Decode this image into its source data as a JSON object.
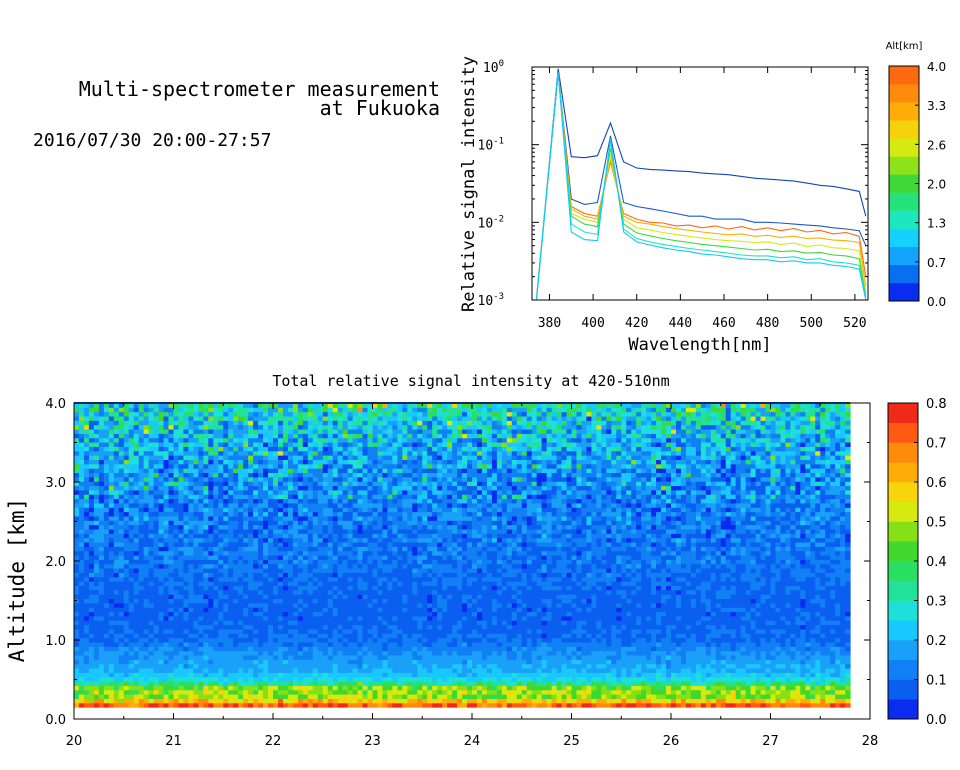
{
  "header": {
    "title_line1": "Multi-spectrometer measurement",
    "title_line2": "at Fukuoka",
    "datetime": "2016/07/30 20:00-27:57"
  },
  "chart_data": [
    {
      "type": "line",
      "xlabel": "Wavelength[nm]",
      "ylabel": "Relative signal intensity",
      "xlim": [
        372,
        526
      ],
      "ylim": [
        0.001,
        1
      ],
      "yscale": "log",
      "x_ticks": [
        380,
        400,
        420,
        440,
        460,
        480,
        500,
        520
      ],
      "y_ticks": [
        {
          "value": 0.001,
          "base": "10",
          "exp": "-3"
        },
        {
          "value": 0.01,
          "base": "10",
          "exp": "-2"
        },
        {
          "value": 0.1,
          "base": "10",
          "exp": "-1"
        },
        {
          "value": 1,
          "base": "10",
          "exp": "0"
        }
      ],
      "x": [
        374,
        384,
        390,
        396,
        402,
        408,
        414,
        420,
        426,
        432,
        438,
        444,
        450,
        456,
        462,
        468,
        474,
        480,
        486,
        492,
        498,
        504,
        510,
        516,
        522,
        525
      ],
      "legend": {
        "title": "Alt[km]",
        "labels": [
          "4.0",
          "3.3",
          "2.6",
          "2.0",
          "1.3",
          "0.7",
          "0.0"
        ],
        "colors": [
          "#0a2cf0",
          "#0a6ef0",
          "#12a4ff",
          "#14d2ff",
          "#1ee6be",
          "#26e27a",
          "#3ed83a",
          "#8ee21c",
          "#d4ea10",
          "#f6d20c",
          "#ffae08",
          "#ff8a0c",
          "#ff6a10"
        ]
      },
      "series": [
        {
          "color": "#1545b5",
          "values": [
            0.001,
            0.95,
            0.07,
            0.068,
            0.072,
            0.19,
            0.06,
            0.05,
            0.048,
            0.047,
            0.046,
            0.045,
            0.043,
            0.042,
            0.041,
            0.039,
            0.037,
            0.036,
            0.035,
            0.034,
            0.032,
            0.03,
            0.029,
            0.027,
            0.025,
            0.012
          ]
        },
        {
          "color": "#1a5ac8",
          "values": [
            0.001,
            0.85,
            0.02,
            0.017,
            0.018,
            0.13,
            0.018,
            0.016,
            0.015,
            0.014,
            0.013,
            0.012,
            0.012,
            0.011,
            0.011,
            0.011,
            0.01,
            0.01,
            0.0098,
            0.0095,
            0.0092,
            0.009,
            0.0085,
            0.0082,
            0.0078,
            0.005
          ]
        },
        {
          "color": "#ff6a10",
          "values": [
            0.001,
            0.85,
            0.016,
            0.013,
            0.012,
            0.06,
            0.013,
            0.011,
            0.01,
            0.0098,
            0.009,
            0.0092,
            0.0085,
            0.009,
            0.0082,
            0.0088,
            0.008,
            0.0085,
            0.0078,
            0.0083,
            0.0075,
            0.0079,
            0.0071,
            0.0074,
            0.0066,
            0.002
          ]
        },
        {
          "color": "#ffae08",
          "values": [
            0.001,
            0.85,
            0.015,
            0.012,
            0.011,
            0.065,
            0.012,
            0.01,
            0.0095,
            0.0088,
            0.0083,
            0.0079,
            0.0075,
            0.0072,
            0.0069,
            0.0071,
            0.0066,
            0.0068,
            0.0064,
            0.0066,
            0.0062,
            0.0063,
            0.0059,
            0.0058,
            0.0055,
            0.0015
          ]
        },
        {
          "color": "#d4ea10",
          "values": [
            0.001,
            0.85,
            0.013,
            0.011,
            0.01,
            0.075,
            0.011,
            0.0085,
            0.008,
            0.0074,
            0.007,
            0.0066,
            0.0063,
            0.006,
            0.0058,
            0.0057,
            0.0055,
            0.0056,
            0.0052,
            0.0054,
            0.0049,
            0.0051,
            0.0047,
            0.0046,
            0.0043,
            0.0012
          ]
        },
        {
          "color": "#3ed83a",
          "values": [
            0.001,
            0.85,
            0.012,
            0.0095,
            0.0088,
            0.09,
            0.0095,
            0.0073,
            0.0067,
            0.0062,
            0.0058,
            0.0055,
            0.0052,
            0.005,
            0.0048,
            0.0046,
            0.0044,
            0.0045,
            0.0042,
            0.0043,
            0.004,
            0.0041,
            0.0038,
            0.0037,
            0.0034,
            0.0011
          ]
        },
        {
          "color": "#1ee6be",
          "values": [
            0.001,
            0.85,
            0.0095,
            0.0075,
            0.007,
            0.11,
            0.0082,
            0.0062,
            0.0056,
            0.0052,
            0.0049,
            0.0046,
            0.0044,
            0.0042,
            0.004,
            0.0038,
            0.0037,
            0.0037,
            0.0035,
            0.0036,
            0.0033,
            0.0034,
            0.0031,
            0.003,
            0.0028,
            0.001
          ]
        },
        {
          "color": "#12c8ff",
          "values": [
            0.001,
            0.85,
            0.0075,
            0.006,
            0.0058,
            0.12,
            0.0075,
            0.0056,
            0.0051,
            0.0047,
            0.0044,
            0.0042,
            0.0039,
            0.0038,
            0.0036,
            0.0034,
            0.0033,
            0.0033,
            0.0031,
            0.0032,
            0.003,
            0.003,
            0.0028,
            0.0027,
            0.0025,
            0.001
          ]
        }
      ]
    },
    {
      "type": "heatmap",
      "title": "Total relative signal intensity at 420-510nm",
      "ylabel": "Altitude [km]",
      "xlim": [
        20,
        28
      ],
      "ylim": [
        0,
        4
      ],
      "x_ticks": [
        "20",
        "21",
        "22",
        "23",
        "24",
        "25",
        "26",
        "27",
        "28"
      ],
      "y_ticks": [
        "0.0",
        "1.0",
        "2.0",
        "3.0",
        "4.0"
      ],
      "data_extent_x": [
        20,
        27.8
      ],
      "data_extent_y": [
        0.15,
        4.0
      ],
      "colorbar": {
        "labels": [
          "0.0",
          "0.1",
          "0.2",
          "0.3",
          "0.4",
          "0.5",
          "0.6",
          "0.7",
          "0.8"
        ],
        "range": [
          0,
          0.8
        ],
        "colors": [
          "#0a2cf0",
          "#0a5ef0",
          "#1080f4",
          "#1aa0f8",
          "#18c8ff",
          "#1ee0d8",
          "#22e29a",
          "#2ade62",
          "#40d82c",
          "#86e016",
          "#d6ea10",
          "#f8d40a",
          "#ffac08",
          "#ff8a0c",
          "#ff5a12",
          "#f02a18"
        ]
      },
      "altitude_profile": [
        {
          "alt": 0.15,
          "value": 0.78
        },
        {
          "alt": 0.22,
          "value": 0.62
        },
        {
          "alt": 0.3,
          "value": 0.45
        },
        {
          "alt": 0.38,
          "value": 0.5
        },
        {
          "alt": 0.48,
          "value": 0.28
        },
        {
          "alt": 0.6,
          "value": 0.2
        },
        {
          "alt": 0.8,
          "value": 0.16
        },
        {
          "alt": 1.0,
          "value": 0.1
        },
        {
          "alt": 1.3,
          "value": 0.08
        },
        {
          "alt": 1.6,
          "value": 0.09
        },
        {
          "alt": 2.0,
          "value": 0.11
        },
        {
          "alt": 2.5,
          "value": 0.12
        },
        {
          "alt": 3.0,
          "value": 0.14
        },
        {
          "alt": 3.4,
          "value": 0.18
        },
        {
          "alt": 3.8,
          "value": 0.24
        },
        {
          "alt": 4.0,
          "value": 0.3
        }
      ]
    }
  ]
}
